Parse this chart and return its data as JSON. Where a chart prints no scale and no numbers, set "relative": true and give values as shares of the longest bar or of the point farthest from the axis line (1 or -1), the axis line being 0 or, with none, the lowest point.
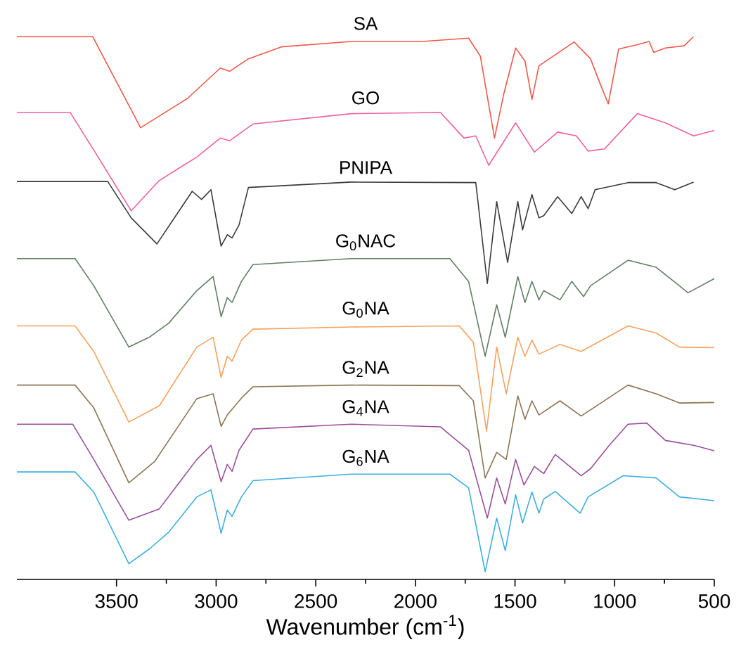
{
  "chart_data": {
    "type": "line",
    "relative": true,
    "xlabel": "Wavenumber (cm$^{-1}$)",
    "xlim": [
      4000,
      500
    ],
    "xticks": [
      3500,
      3000,
      2500,
      2000,
      1500,
      1000,
      500
    ],
    "legend": false,
    "series": [
      {
        "name": "SA",
        "color": "#f0584a",
        "x": [
          4000,
          3620,
          3379,
          3144,
          2979,
          2932,
          2838,
          2673,
          2321,
          1968,
          1733,
          1674,
          1603,
          1556,
          1497,
          1450,
          1415,
          1380,
          1203,
          1121,
          1074,
          1032,
          980,
          886,
          827,
          804,
          745,
          651,
          604
        ],
        "values": [
          1.0,
          1.0,
          0.832,
          0.886,
          0.942,
          0.936,
          0.959,
          0.981,
          0.991,
          0.991,
          0.997,
          0.964,
          0.813,
          0.895,
          0.979,
          0.955,
          0.884,
          0.946,
          0.99,
          0.959,
          0.914,
          0.876,
          0.977,
          0.985,
          0.991,
          0.971,
          0.979,
          0.983,
          1.0
        ]
      },
      {
        "name": "GO",
        "color": "#f0609e",
        "x": [
          4000,
          3732,
          3614,
          3426,
          3285,
          3097,
          2979,
          2932,
          2815,
          2321,
          1874,
          1756,
          1697,
          1632,
          1497,
          1403,
          1286,
          1192,
          1133,
          1051,
          886,
          745,
          604,
          500
        ],
        "values": [
          0.86,
          0.86,
          0.791,
          0.679,
          0.735,
          0.778,
          0.813,
          0.808,
          0.839,
          0.858,
          0.86,
          0.813,
          0.817,
          0.763,
          0.841,
          0.787,
          0.824,
          0.817,
          0.789,
          0.793,
          0.858,
          0.841,
          0.817,
          0.827
        ]
      },
      {
        "name": "PNIPA",
        "color": "#3a3a3a",
        "x": [
          4000,
          3544,
          3426,
          3297,
          3120,
          3073,
          3026,
          2975,
          2944,
          2920,
          2885,
          2838,
          2321,
          1697,
          1639,
          1592,
          1537,
          1486,
          1462,
          1415,
          1380,
          1356,
          1286,
          1215,
          1168,
          1133,
          1098,
          933,
          792,
          698,
          604
        ],
        "values": [
          0.733,
          0.733,
          0.666,
          0.618,
          0.715,
          0.7,
          0.718,
          0.614,
          0.635,
          0.629,
          0.653,
          0.722,
          0.732,
          0.731,
          0.545,
          0.696,
          0.584,
          0.696,
          0.644,
          0.709,
          0.666,
          0.67,
          0.705,
          0.674,
          0.705,
          0.683,
          0.718,
          0.731,
          0.731,
          0.718,
          0.732
        ]
      },
      {
        "name": "G$_{0}$NAC",
        "color": "#5f7f62",
        "x": [
          4000,
          3708,
          3614,
          3438,
          3332,
          3238,
          3097,
          3015,
          2975,
          2944,
          2920,
          2873,
          2815,
          2321,
          1827,
          1733,
          1650,
          1592,
          1549,
          1486,
          1450,
          1415,
          1380,
          1356,
          1274,
          1215,
          1156,
          1121,
          933,
          792,
          675,
          632,
          500
        ],
        "values": [
          0.591,
          0.591,
          0.541,
          0.428,
          0.447,
          0.472,
          0.532,
          0.558,
          0.484,
          0.519,
          0.51,
          0.549,
          0.58,
          0.591,
          0.591,
          0.549,
          0.411,
          0.506,
          0.446,
          0.558,
          0.51,
          0.549,
          0.515,
          0.532,
          0.515,
          0.549,
          0.521,
          0.541,
          0.588,
          0.575,
          0.541,
          0.528,
          0.554
        ]
      },
      {
        "name": "G$_{0}$NA",
        "color": "#f7a15e",
        "x": [
          4000,
          3708,
          3614,
          3438,
          3285,
          3097,
          3015,
          2975,
          2944,
          2920,
          2873,
          2815,
          2321,
          1780,
          1709,
          1643,
          1592,
          1544,
          1486,
          1450,
          1415,
          1380,
          1274,
          1168,
          933,
          792,
          675,
          500
        ],
        "values": [
          0.467,
          0.467,
          0.42,
          0.29,
          0.32,
          0.428,
          0.446,
          0.372,
          0.411,
          0.402,
          0.441,
          0.461,
          0.465,
          0.467,
          0.437,
          0.273,
          0.428,
          0.342,
          0.446,
          0.411,
          0.441,
          0.415,
          0.433,
          0.42,
          0.467,
          0.454,
          0.428,
          0.427
        ]
      },
      {
        "name": "G$_{2}$NA",
        "color": "#8c7552",
        "x": [
          4000,
          3708,
          3614,
          3438,
          3309,
          3097,
          3015,
          2975,
          2944,
          2873,
          2815,
          2321,
          1780,
          1709,
          1650,
          1592,
          1544,
          1486,
          1450,
          1415,
          1380,
          1274,
          1168,
          933,
          792,
          675,
          500
        ],
        "values": [
          0.358,
          0.358,
          0.316,
          0.178,
          0.217,
          0.333,
          0.342,
          0.282,
          0.303,
          0.334,
          0.355,
          0.358,
          0.357,
          0.329,
          0.187,
          0.234,
          0.221,
          0.338,
          0.295,
          0.329,
          0.303,
          0.329,
          0.301,
          0.358,
          0.342,
          0.325,
          0.326
        ]
      },
      {
        "name": "G$_{4}$NA",
        "color": "#9b4f9b",
        "x": [
          4000,
          3720,
          3614,
          3438,
          3285,
          3097,
          3026,
          2975,
          2944,
          2920,
          2885,
          2815,
          2321,
          1874,
          1733,
          1639,
          1592,
          1549,
          1497,
          1455,
          1403,
          1356,
          1298,
          1168,
          1121,
          1027,
          933,
          839,
          745,
          604,
          500
        ],
        "values": [
          0.286,
          0.286,
          0.221,
          0.109,
          0.13,
          0.221,
          0.247,
          0.18,
          0.212,
          0.199,
          0.238,
          0.277,
          0.286,
          0.281,
          0.238,
          0.113,
          0.187,
          0.139,
          0.221,
          0.174,
          0.208,
          0.195,
          0.23,
          0.191,
          0.204,
          0.247,
          0.286,
          0.288,
          0.256,
          0.247,
          0.237
        ]
      },
      {
        "name": "G$_{6}$NA",
        "color": "#3eaee0",
        "x": [
          4000,
          3708,
          3614,
          3438,
          3332,
          3238,
          3097,
          3026,
          2975,
          2944,
          2920,
          2873,
          2815,
          2321,
          1827,
          1733,
          1650,
          1592,
          1549,
          1497,
          1462,
          1415,
          1380,
          1356,
          1298,
          1173,
          1133,
          957,
          792,
          675,
          500
        ],
        "values": [
          0.198,
          0.198,
          0.161,
          0.029,
          0.057,
          0.087,
          0.152,
          0.165,
          0.085,
          0.128,
          0.116,
          0.152,
          0.182,
          0.194,
          0.194,
          0.169,
          0.014,
          0.113,
          0.053,
          0.156,
          0.104,
          0.161,
          0.122,
          0.148,
          0.162,
          0.122,
          0.152,
          0.191,
          0.187,
          0.152,
          0.145
        ]
      }
    ]
  }
}
